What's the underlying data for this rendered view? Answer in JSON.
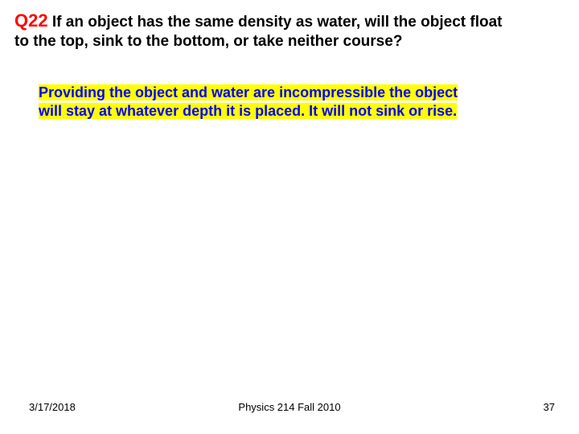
{
  "slide": {
    "question": {
      "label": "Q22",
      "text_line1": " If an object has the same density as water, will the object float",
      "text_line2": "to the top, sink to the bottom, or take neither course?"
    },
    "answer": {
      "line1": "Providing the object and water are incompressible the object",
      "line2": "will stay at whatever depth it is placed. It will not sink or rise."
    },
    "footer": {
      "date": "3/17/2018",
      "center": "Physics 214 Fall 2010",
      "page": "37"
    },
    "colors": {
      "q_label": "#ff0000",
      "q_text": "#000000",
      "answer_text": "#0000ff",
      "answer_highlight": "#ffff00",
      "background": "#ffffff",
      "footer_text": "#000000"
    }
  }
}
